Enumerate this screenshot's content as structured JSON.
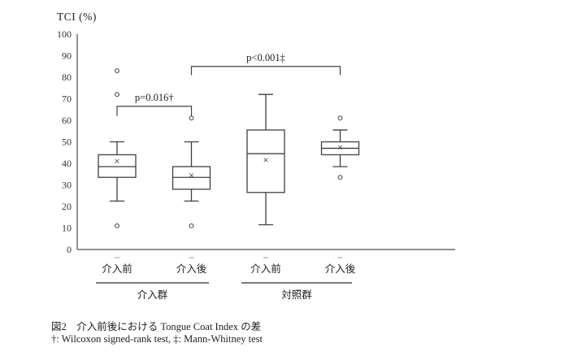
{
  "figure": {
    "ylabel": "TCI (%)",
    "caption": "図2　介入前後における Tongue Coat Index の差",
    "footnote": "†: Wilcoxon signed-rank test, ‡: Mann-Whitney test"
  },
  "chart_data": {
    "type": "boxplot",
    "title": "",
    "ylabel": "TCI (%)",
    "xlabel": "",
    "ylim": [
      0,
      100
    ],
    "yticks": [
      0,
      10,
      20,
      30,
      40,
      50,
      60,
      70,
      80,
      90,
      100
    ],
    "grid": false,
    "categories": [
      "介入前",
      "介入後",
      "介入前",
      "介入後"
    ],
    "groups": [
      {
        "label": "介入群",
        "from": 0,
        "to": 1
      },
      {
        "label": "対照群",
        "from": 2,
        "to": 3
      }
    ],
    "boxes": [
      {
        "category": "介入前",
        "group": "介入群",
        "whisker_low": 22.5,
        "q1": 33.5,
        "median": 38.5,
        "q3": 44,
        "whisker_high": 50,
        "mean": 41,
        "outliers": [
          83,
          72,
          11
        ]
      },
      {
        "category": "介入後",
        "group": "介入群",
        "whisker_low": 22.5,
        "q1": 28,
        "median": 33.5,
        "q3": 38.5,
        "whisker_high": 50,
        "mean": 34.5,
        "outliers": [
          61,
          11
        ]
      },
      {
        "category": "介入前",
        "group": "対照群",
        "whisker_low": 11.5,
        "q1": 26.5,
        "median": 44.5,
        "q3": 55.5,
        "whisker_high": 72,
        "mean": 41.5,
        "outliers": []
      },
      {
        "category": "介入後",
        "group": "対照群",
        "whisker_low": 38.5,
        "q1": 44,
        "median": 47,
        "q3": 50,
        "whisker_high": 55.5,
        "mean": 47.5,
        "outliers": [
          61,
          33.5
        ]
      }
    ],
    "significance": [
      {
        "label": "p=0.016†",
        "from": 0,
        "to": 1,
        "bar_y": 66.5,
        "tick_down": 4.5
      },
      {
        "label": "p<0.001‡",
        "from": 1,
        "to": 3,
        "bar_y": 85,
        "tick_down": 4
      }
    ],
    "mean_marker": "×",
    "colors": {
      "box_stroke": "#404040",
      "axis": "#6e6e6e",
      "text": "#1f1f1f",
      "tick_label": "#333333",
      "outlier_stroke": "#4d4d4d",
      "x_tick_dash": "#a6a6a6",
      "group_underline": "#4d4d4d"
    }
  }
}
